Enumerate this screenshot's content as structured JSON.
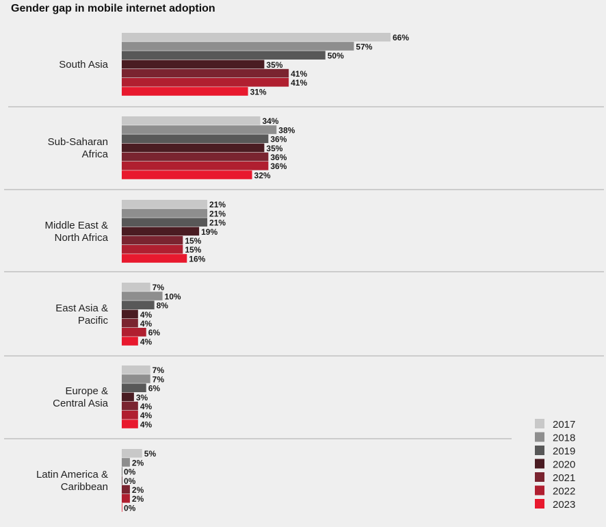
{
  "title": "Gender gap in mobile internet adoption",
  "chart_data": {
    "type": "bar",
    "orientation": "horizontal",
    "title": "Gender gap in mobile internet adoption",
    "unit": "%",
    "categories": [
      [
        "South Asia"
      ],
      [
        "Sub-Saharan",
        "Africa"
      ],
      [
        "Middle East &",
        "North Africa"
      ],
      [
        "East Asia &",
        "Pacific"
      ],
      [
        "Europe &",
        "Central Asia"
      ],
      [
        "Latin America &",
        "Caribbean"
      ]
    ],
    "series": [
      {
        "name": "2017",
        "color": "#c8c8c8",
        "values": [
          66,
          34,
          21,
          7,
          7,
          5
        ]
      },
      {
        "name": "2018",
        "color": "#8e8e8e",
        "values": [
          57,
          38,
          21,
          10,
          7,
          2
        ]
      },
      {
        "name": "2019",
        "color": "#585858",
        "values": [
          50,
          36,
          21,
          8,
          6,
          0
        ]
      },
      {
        "name": "2020",
        "color": "#4a1c22",
        "values": [
          35,
          35,
          19,
          4,
          3,
          0
        ]
      },
      {
        "name": "2021",
        "color": "#7a2430",
        "values": [
          41,
          36,
          15,
          4,
          4,
          2
        ]
      },
      {
        "name": "2022",
        "color": "#b01f30",
        "values": [
          41,
          36,
          15,
          6,
          4,
          2
        ]
      },
      {
        "name": "2023",
        "color": "#e8192e",
        "values": [
          31,
          32,
          16,
          4,
          4,
          0
        ]
      }
    ],
    "legend_position": "bottom-right",
    "grid": false
  }
}
